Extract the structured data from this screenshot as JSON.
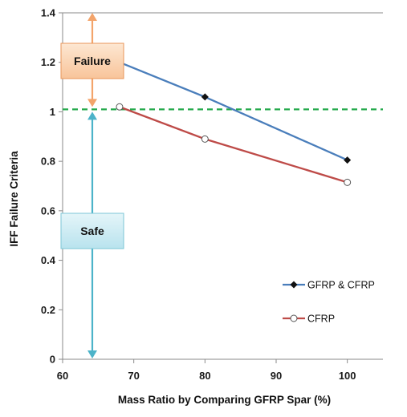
{
  "chart_data": {
    "type": "line",
    "xlabel": "Mass Ratio by Comparing GFRP Spar (%)",
    "ylabel": "IFF Failure Criteria",
    "xlim": [
      60,
      105
    ],
    "ylim": [
      0,
      1.4
    ],
    "xticks": [
      "60",
      "70",
      "80",
      "90",
      "100"
    ],
    "yticks": [
      "0",
      "0.2",
      "0.4",
      "0.6",
      "0.8",
      "1",
      "1.2",
      "1.4"
    ],
    "grid": false,
    "legend_position": "bottom-right",
    "threshold": 1.01,
    "threshold_color": "#22a84a",
    "series": [
      {
        "name": "GFRP & CFRP",
        "color": "#4a7ebb",
        "marker": "filled-diamond",
        "x": [
          68,
          80,
          100
        ],
        "y": [
          1.2,
          1.06,
          0.805
        ]
      },
      {
        "name": "CFRP",
        "color": "#be4b48",
        "marker": "open-circle",
        "x": [
          68,
          80,
          100
        ],
        "y": [
          1.02,
          0.89,
          0.715
        ]
      }
    ],
    "annotations": [
      {
        "label": "Failure",
        "color": "#f3a46b",
        "box_fill": "#fcd9b9",
        "box_border": "#e8965a"
      },
      {
        "label": "Safe",
        "color": "#4cb3c9",
        "box_fill": "#c6e9f1",
        "box_border": "#7cc6d6"
      }
    ]
  }
}
